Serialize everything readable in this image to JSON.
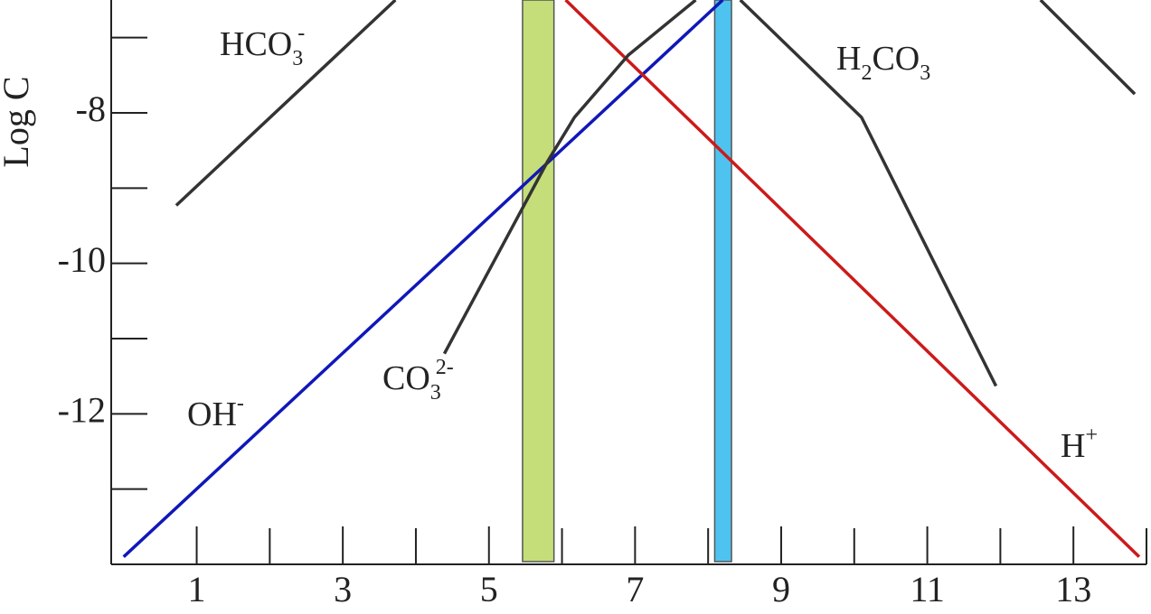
{
  "chart_data": {
    "type": "line",
    "y_label": "Log C",
    "xlim": [
      -0.17,
      14
    ],
    "ylim": [
      -14,
      -6.5
    ],
    "xticks": [
      1,
      3,
      5,
      7,
      9,
      11,
      13
    ],
    "minor_xticks": [
      2,
      4,
      6,
      8,
      10,
      12,
      14
    ],
    "yticks": [
      -8,
      -10,
      -12
    ],
    "minor_yticks": [
      -7,
      -9,
      -11,
      -13
    ],
    "bands": [
      {
        "x": [
          5.46,
          5.89
        ],
        "color": "#c5de7a"
      },
      {
        "x": [
          8.09,
          8.32
        ],
        "color": "#4fc3f0"
      }
    ],
    "series": [
      {
        "label": [
          [
            "OH",
            ""
          ],
          [
            "-",
            "sup"
          ]
        ],
        "color": "#1018b8",
        "x": [
          0,
          8.2
        ],
        "values": [
          -13.9,
          -6.5
        ]
      },
      {
        "label": [
          [
            "H",
            ""
          ],
          [
            "+",
            "sup"
          ]
        ],
        "color": "#cc1a1a",
        "x": [
          6.05,
          13.9
        ],
        "values": [
          -6.5,
          -13.9
        ]
      },
      {
        "label": [
          [
            "HCO",
            ""
          ],
          [
            "3",
            "sub"
          ],
          [
            "-",
            "sup"
          ]
        ],
        "color": "#333333",
        "x": [
          0.72,
          3.72
        ],
        "values": [
          -9.23,
          -6.5
        ]
      },
      {
        "label": [
          [
            "H",
            ""
          ],
          [
            "2",
            "sub"
          ],
          [
            "CO",
            ""
          ],
          [
            "3",
            "sub"
          ]
        ],
        "color": "#333333",
        "x": [
          8.44,
          10.1,
          11.94
        ],
        "values": [
          -6.5,
          -8.06,
          -11.63
        ]
      },
      {
        "label": [
          [
            "CO",
            ""
          ],
          [
            "3",
            "sub"
          ],
          [
            "2-",
            "sup"
          ]
        ],
        "color": "#333333",
        "x": [
          4.39,
          5.8,
          6.17,
          6.91,
          7.83
        ],
        "values": [
          -11.2,
          -8.65,
          -8.06,
          -7.23,
          -6.5
        ]
      },
      {
        "color": "#333333",
        "x": [
          12.55,
          13.84
        ],
        "values": [
          -6.5,
          -7.75
        ]
      }
    ]
  }
}
